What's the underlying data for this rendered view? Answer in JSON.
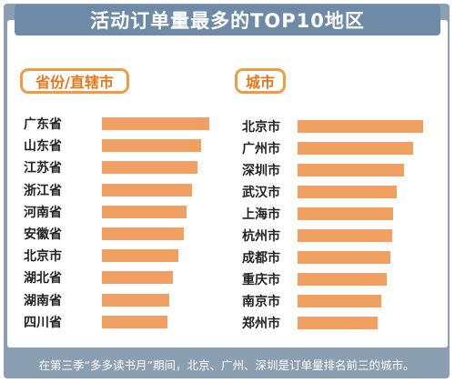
{
  "title": "活动订单量最多的TOP10地区",
  "footer": "在第三季“多多读书月”期间，北京、广州、深圳是订单量排名前三的城市。",
  "colors": {
    "bar": "#f0a062",
    "header": "#6e8aa6",
    "tag": "#f09a43"
  },
  "chart_data": [
    {
      "type": "bar",
      "title": "省份/直辖市",
      "categories": [
        "广东省",
        "山东省",
        "江苏省",
        "浙江省",
        "河南省",
        "安徽省",
        "北京市",
        "湖北省",
        "湖南省",
        "四川省"
      ],
      "values": [
        100,
        92,
        89,
        84,
        79,
        76,
        71,
        66,
        63,
        61
      ]
    },
    {
      "type": "bar",
      "title": "城市",
      "categories": [
        "北京市",
        "广州市",
        "深圳市",
        "武汉市",
        "上海市",
        "杭州市",
        "成都市",
        "重庆市",
        "南京市",
        "郑州市"
      ],
      "values": [
        100,
        92,
        85,
        79,
        76,
        75,
        74,
        71,
        67,
        64
      ]
    }
  ]
}
